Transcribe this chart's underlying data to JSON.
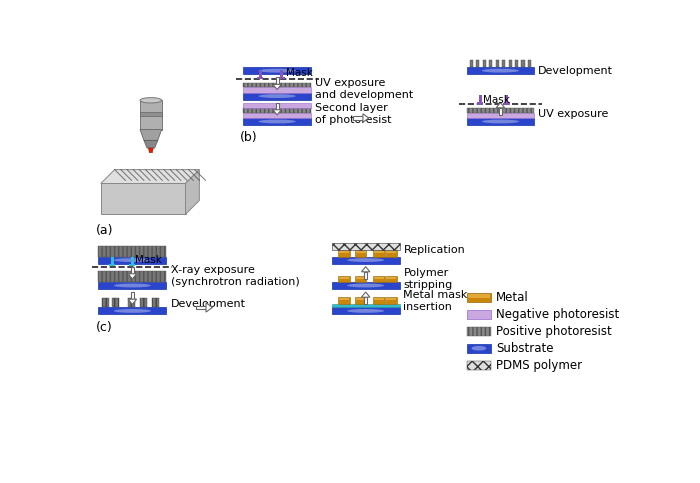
{
  "bg_color": "#ffffff",
  "colors": {
    "substrate": "#2a45cc",
    "substrate_glow": "#6688ff",
    "negative_pr": "#c9a8e0",
    "positive_pr_fc": "#888888",
    "metal": "#c8860a",
    "metal_edge": "#996600",
    "pdms_fc": "#dddddd",
    "mask_purple": "#8855bb",
    "mask_cyan": "#33bbdd",
    "arrow_fill": "#ffffff",
    "arrow_edge": "#666666",
    "mask_line": "#222222",
    "text": "#000000",
    "gray3d_light": "#cccccc",
    "gray3d_mid": "#aaaaaa",
    "gray3d_dark": "#888888"
  },
  "labels": {
    "a": "(a)",
    "b": "(b)",
    "c": "(c)",
    "uv_exposure": "UV exposure\nand development",
    "second_layer": "Second layer\nof photoresist",
    "uv_exposure2": "UV exposure",
    "development_top": "Development",
    "x_ray": "X-ray exposure\n(synchrotron radiation)",
    "development_bot": "Development",
    "replication": "Replication",
    "polymer_stripping": "Polymer\nstripping",
    "metal_mask": "Metal mask\ninsertion",
    "mask": "Mask"
  },
  "legend_items": [
    {
      "label": "Metal",
      "color": "#c8860a",
      "type": "metal"
    },
    {
      "label": "Negative photoresist",
      "color": "#c9a8e0",
      "type": "neg_pr"
    },
    {
      "label": "Positive photoresist",
      "color": "#888888",
      "type": "pos_pr"
    },
    {
      "label": "Substrate",
      "color": "#2a45cc",
      "type": "substrate"
    },
    {
      "label": "PDMS polymer",
      "color": "#dddddd",
      "type": "pdms"
    }
  ]
}
